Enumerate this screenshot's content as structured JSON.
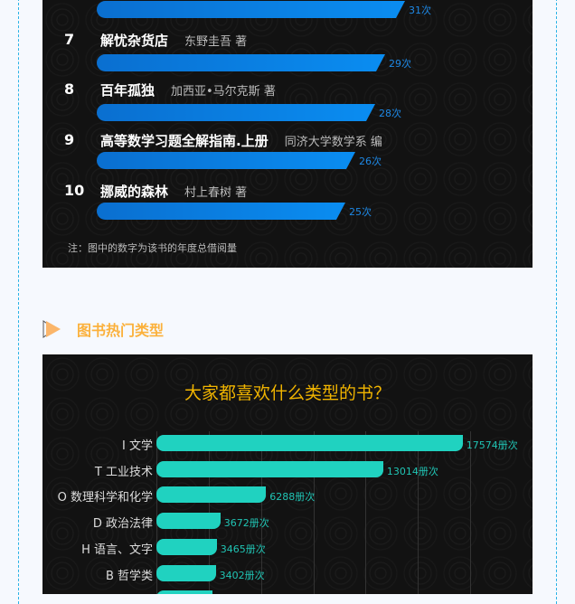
{
  "top_chart": {
    "rows": [
      {
        "rank": "",
        "title": "",
        "author": "",
        "value": 31,
        "value_label": "31次"
      },
      {
        "rank": "7",
        "title": "解忧杂货店",
        "author": "东野圭吾 著",
        "value": 29,
        "value_label": "29次"
      },
      {
        "rank": "8",
        "title": "百年孤独",
        "author": "加西亚•马尔克斯 著",
        "value": 28,
        "value_label": "28次"
      },
      {
        "rank": "9",
        "title": "高等数学习题全解指南.上册",
        "author": "同济大学数学系 编",
        "value": 26,
        "value_label": "26次"
      },
      {
        "rank": "10",
        "title": "挪威的森林",
        "author": "村上春树 著",
        "value": 25,
        "value_label": "25次"
      }
    ],
    "note": "注：图中的数字为该书的年度总借阅量",
    "bar_color": "#0a8cf0"
  },
  "section": {
    "title": "图书热门类型",
    "icon": "play-triangle-icon",
    "color": "#fbb13c"
  },
  "chart_data": {
    "type": "bar",
    "orientation": "horizontal",
    "title": "大家都喜欢什么类型的书？",
    "categories": [
      "I 文学",
      "T 工业技术",
      "O 数理科学和化学",
      "D 政治法律",
      "H 语言、文字",
      "B 哲学类"
    ],
    "values": [
      17574,
      13014,
      6288,
      3672,
      3465,
      3402
    ],
    "value_labels": [
      "17574册次",
      "13014册次",
      "6288册次",
      "3672册次",
      "3465册次",
      "3402册次"
    ],
    "xlim": [
      0,
      18000
    ],
    "grid": true,
    "bar_color": "#20d2c0",
    "title_color": "#f0b400"
  }
}
